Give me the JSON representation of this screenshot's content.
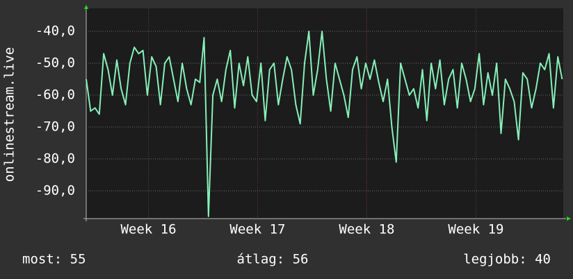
{
  "chart_data": {
    "type": "line",
    "y_label": "onlinestream.live",
    "x": [
      15.43,
      15.47,
      15.51,
      15.55,
      15.59,
      15.63,
      15.67,
      15.71,
      15.75,
      15.79,
      15.83,
      15.87,
      15.91,
      15.95,
      15.99,
      16.03,
      16.07,
      16.11,
      16.15,
      16.19,
      16.23,
      16.27,
      16.31,
      16.35,
      16.39,
      16.43,
      16.47,
      16.51,
      16.55,
      16.59,
      16.63,
      16.67,
      16.71,
      16.75,
      16.79,
      16.83,
      16.87,
      16.91,
      16.95,
      16.99,
      17.03,
      17.07,
      17.11,
      17.15,
      17.19,
      17.23,
      17.27,
      17.31,
      17.35,
      17.39,
      17.43,
      17.47,
      17.51,
      17.55,
      17.59,
      17.63,
      17.67,
      17.71,
      17.75,
      17.79,
      17.83,
      17.87,
      17.91,
      17.95,
      17.99,
      18.03,
      18.07,
      18.11,
      18.15,
      18.19,
      18.23,
      18.27,
      18.31,
      18.35,
      18.39,
      18.43,
      18.47,
      18.51,
      18.55,
      18.59,
      18.63,
      18.67,
      18.71,
      18.75,
      18.79,
      18.83,
      18.87,
      18.91,
      18.95,
      18.99,
      19.03,
      19.07,
      19.11,
      19.15,
      19.19,
      19.23,
      19.27,
      19.31,
      19.35,
      19.39,
      19.43,
      19.47,
      19.51,
      19.55,
      19.59,
      19.63,
      19.67,
      19.71,
      19.75,
      19.79
    ],
    "series": [
      {
        "name": null,
        "color": "#86f0b8",
        "values": [
          -55,
          -65,
          -64,
          -66,
          -47,
          -52,
          -60,
          -49,
          -58,
          -63,
          -50,
          -45,
          -47,
          -46,
          -60,
          -48,
          -51,
          -63,
          -50,
          -48,
          -55,
          -62,
          -50,
          -58,
          -63,
          -55,
          -56,
          -42,
          -98,
          -60,
          -55,
          -62,
          -52,
          -46,
          -64,
          -50,
          -57,
          -48,
          -60,
          -62,
          -50,
          -68,
          -52,
          -50,
          -63,
          -55,
          -48,
          -52,
          -63,
          -69,
          -50,
          -40,
          -60,
          -52,
          -40,
          -55,
          -65,
          -50,
          -55,
          -60,
          -67,
          -52,
          -48,
          -58,
          -50,
          -55,
          -49,
          -56,
          -62,
          -55,
          -70,
          -81,
          -50,
          -55,
          -60,
          -58,
          -64,
          -52,
          -68,
          -50,
          -58,
          -49,
          -63,
          -55,
          -52,
          -64,
          -50,
          -55,
          -62,
          -58,
          -47,
          -63,
          -53,
          -60,
          -50,
          -72,
          -55,
          -58,
          -62,
          -74,
          -53,
          -55,
          -64,
          -58,
          -50,
          -52,
          -47,
          -64,
          -48,
          -55
        ]
      }
    ],
    "xlim": [
      15.43,
      19.8
    ],
    "ylim": [
      -98.7,
      -32.8
    ],
    "xticks": [
      {
        "value": 16,
        "label": "Week 16"
      },
      {
        "value": 17,
        "label": "Week 17"
      },
      {
        "value": 18,
        "label": "Week 18"
      },
      {
        "value": 19,
        "label": "Week 19"
      }
    ],
    "yticks": [
      {
        "value": -40,
        "label": "-40,0"
      },
      {
        "value": -50,
        "label": "-50,0"
      },
      {
        "value": -60,
        "label": "-60,0"
      },
      {
        "value": -70,
        "label": "-70,0"
      },
      {
        "value": -80,
        "label": "-80,0"
      },
      {
        "value": -90,
        "label": "-90,0"
      }
    ],
    "grid": true,
    "footer": [
      "most: 55",
      "átlag: 56",
      "legjobb: 40"
    ]
  }
}
